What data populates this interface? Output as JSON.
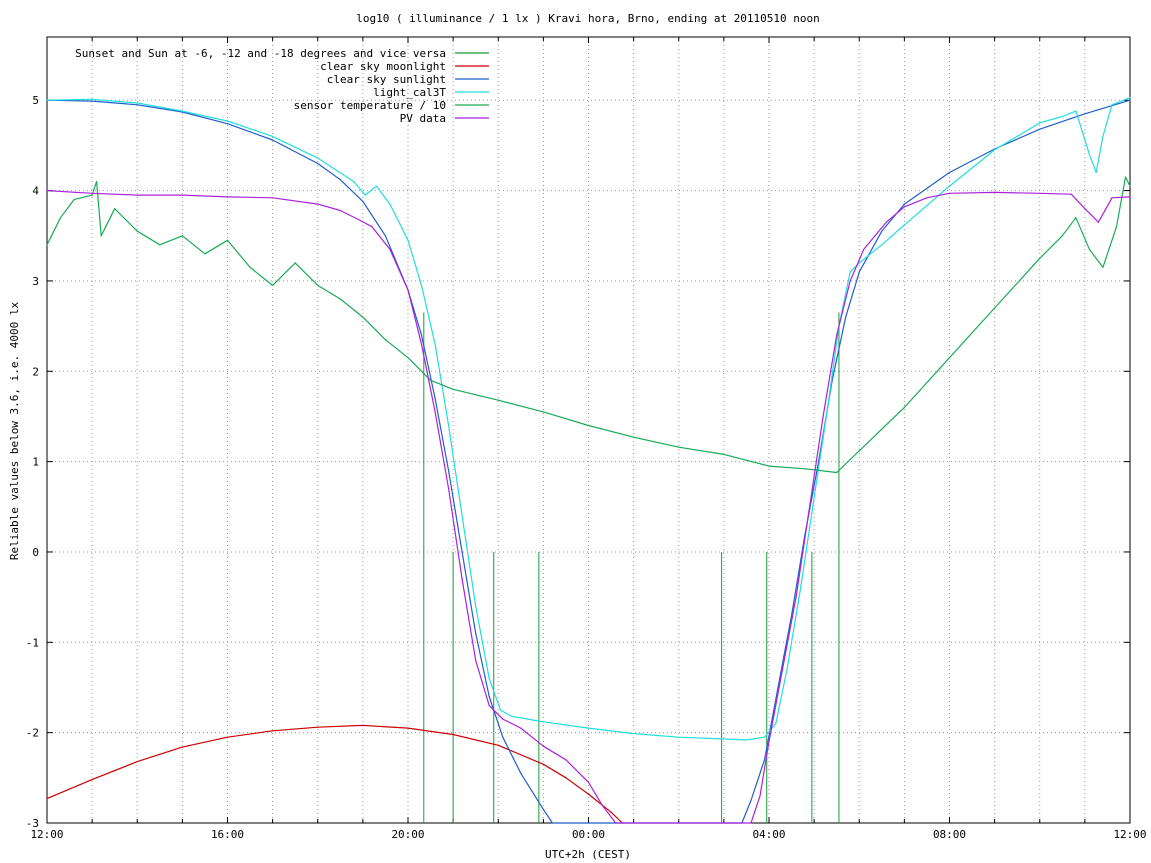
{
  "chart_data": {
    "type": "line",
    "title": "log10 ( illuminance / 1 lx ) Kravi hora, Brno, ending at 20110510 noon",
    "xlabel": "UTC+2h (CEST)",
    "ylabel": "Reliable values below 3.6, i.e. 4000 lx",
    "x_unit": "hours since 12:00 (CEST)",
    "xlim": [
      0,
      24
    ],
    "ylim": [
      -3,
      5.7
    ],
    "x_ticks": [
      {
        "x": 0,
        "label": "12:00"
      },
      {
        "x": 4,
        "label": "16:00"
      },
      {
        "x": 8,
        "label": "20:00"
      },
      {
        "x": 12,
        "label": "00:00"
      },
      {
        "x": 16,
        "label": "04:00"
      },
      {
        "x": 20,
        "label": "08:00"
      },
      {
        "x": 24,
        "label": "12:00"
      }
    ],
    "y_ticks": [
      {
        "y": 5,
        "label": "5"
      },
      {
        "y": 4,
        "label": "4"
      },
      {
        "y": 3,
        "label": "3"
      },
      {
        "y": 2,
        "label": "2"
      },
      {
        "y": 1,
        "label": "1"
      },
      {
        "y": 0,
        "label": "0"
      },
      {
        "y": -1,
        "label": "-1"
      },
      {
        "y": -2,
        "label": "-2"
      },
      {
        "y": -3,
        "label": "-3"
      }
    ],
    "grid": true,
    "legend_position": "top-left",
    "series": [
      {
        "name": "Sunset and Sun at -6, -12 and -18 degrees and vice versa",
        "color": "#1a9a3a",
        "style": "impulses",
        "points": [
          [
            8.35,
            2.65
          ],
          [
            9.0,
            0.0
          ],
          [
            9.9,
            0.0
          ],
          [
            10.9,
            0.0
          ],
          [
            14.95,
            0.0
          ],
          [
            15.95,
            0.0
          ],
          [
            16.95,
            0.0
          ],
          [
            17.55,
            2.65
          ]
        ]
      },
      {
        "name": "clear sky moonlight",
        "color": "#cc0000",
        "style": "line",
        "points": [
          [
            0,
            -2.73
          ],
          [
            1,
            -2.52
          ],
          [
            2,
            -2.32
          ],
          [
            3,
            -2.16
          ],
          [
            4,
            -2.05
          ],
          [
            5,
            -1.98
          ],
          [
            6,
            -1.94
          ],
          [
            7,
            -1.92
          ],
          [
            8,
            -1.95
          ],
          [
            9,
            -2.02
          ],
          [
            10,
            -2.14
          ],
          [
            11,
            -2.35
          ],
          [
            11.5,
            -2.5
          ],
          [
            12,
            -2.68
          ],
          [
            12.5,
            -2.88
          ],
          [
            12.75,
            -3.0
          ]
        ]
      },
      {
        "name": "clear sky sunlight",
        "color": "#1f5fcc",
        "style": "line",
        "points": [
          [
            0,
            5.0
          ],
          [
            1,
            4.99
          ],
          [
            2,
            4.95
          ],
          [
            3,
            4.87
          ],
          [
            4,
            4.74
          ],
          [
            5,
            4.56
          ],
          [
            6,
            4.3
          ],
          [
            6.5,
            4.12
          ],
          [
            7,
            3.88
          ],
          [
            7.5,
            3.5
          ],
          [
            8,
            2.9
          ],
          [
            8.3,
            2.4
          ],
          [
            8.6,
            1.7
          ],
          [
            8.9,
            0.9
          ],
          [
            9.2,
            0.0
          ],
          [
            9.5,
            -0.9
          ],
          [
            9.8,
            -1.6
          ],
          [
            10.1,
            -2.05
          ],
          [
            10.5,
            -2.45
          ],
          [
            11,
            -2.85
          ],
          [
            11.2,
            -3.0
          ],
          [
            15.4,
            -3.0
          ],
          [
            15.6,
            -2.75
          ],
          [
            15.9,
            -2.3
          ],
          [
            16.2,
            -1.5
          ],
          [
            16.5,
            -0.7
          ],
          [
            16.8,
            0.2
          ],
          [
            17.1,
            1.0
          ],
          [
            17.4,
            1.9
          ],
          [
            17.7,
            2.6
          ],
          [
            18.0,
            3.1
          ],
          [
            18.5,
            3.55
          ],
          [
            19,
            3.85
          ],
          [
            20,
            4.2
          ],
          [
            21,
            4.46
          ],
          [
            22,
            4.68
          ],
          [
            23,
            4.85
          ],
          [
            24,
            5.0
          ]
        ]
      },
      {
        "name": "light_cal3T",
        "color": "#22dddd",
        "style": "line",
        "points": [
          [
            0,
            5.0
          ],
          [
            1,
            5.01
          ],
          [
            2,
            4.97
          ],
          [
            3,
            4.88
          ],
          [
            4,
            4.77
          ],
          [
            5,
            4.6
          ],
          [
            6,
            4.36
          ],
          [
            6.8,
            4.1
          ],
          [
            7.05,
            3.95
          ],
          [
            7.3,
            4.05
          ],
          [
            7.6,
            3.85
          ],
          [
            8,
            3.45
          ],
          [
            8.3,
            2.95
          ],
          [
            8.6,
            2.3
          ],
          [
            8.9,
            1.4
          ],
          [
            9.2,
            0.4
          ],
          [
            9.5,
            -0.6
          ],
          [
            9.8,
            -1.4
          ],
          [
            10.05,
            -1.75
          ],
          [
            10.3,
            -1.82
          ],
          [
            11,
            -1.88
          ],
          [
            12,
            -1.95
          ],
          [
            13,
            -2.01
          ],
          [
            14,
            -2.05
          ],
          [
            15,
            -2.07
          ],
          [
            15.5,
            -2.08
          ],
          [
            15.9,
            -2.05
          ],
          [
            16.15,
            -1.9
          ],
          [
            16.4,
            -1.3
          ],
          [
            16.7,
            -0.4
          ],
          [
            17.0,
            0.6
          ],
          [
            17.3,
            1.6
          ],
          [
            17.55,
            2.5
          ],
          [
            17.8,
            3.1
          ],
          [
            18.0,
            3.2
          ],
          [
            18.5,
            3.4
          ],
          [
            19,
            3.62
          ],
          [
            20,
            4.05
          ],
          [
            21,
            4.45
          ],
          [
            22,
            4.75
          ],
          [
            22.5,
            4.82
          ],
          [
            22.8,
            4.88
          ],
          [
            23.1,
            4.4
          ],
          [
            23.25,
            4.2
          ],
          [
            23.4,
            4.6
          ],
          [
            23.6,
            4.95
          ],
          [
            24,
            5.03
          ]
        ]
      },
      {
        "name": "sensor temperature / 10",
        "color": "#1aaa55",
        "style": "line",
        "points": [
          [
            0,
            3.4
          ],
          [
            0.3,
            3.7
          ],
          [
            0.6,
            3.9
          ],
          [
            1.0,
            3.95
          ],
          [
            1.1,
            4.1
          ],
          [
            1.2,
            3.5
          ],
          [
            1.5,
            3.8
          ],
          [
            2,
            3.55
          ],
          [
            2.5,
            3.4
          ],
          [
            3,
            3.5
          ],
          [
            3.5,
            3.3
          ],
          [
            4,
            3.45
          ],
          [
            4.5,
            3.15
          ],
          [
            5,
            2.95
          ],
          [
            5.5,
            3.2
          ],
          [
            6,
            2.95
          ],
          [
            6.5,
            2.8
          ],
          [
            7,
            2.6
          ],
          [
            7.5,
            2.35
          ],
          [
            8,
            2.15
          ],
          [
            8.5,
            1.9
          ],
          [
            9,
            1.8
          ],
          [
            10,
            1.68
          ],
          [
            11,
            1.55
          ],
          [
            12,
            1.4
          ],
          [
            13,
            1.27
          ],
          [
            14,
            1.16
          ],
          [
            15,
            1.08
          ],
          [
            16,
            0.95
          ],
          [
            16.8,
            0.92
          ],
          [
            17.5,
            0.88
          ],
          [
            19,
            1.6
          ],
          [
            20,
            2.15
          ],
          [
            21,
            2.7
          ],
          [
            22,
            3.25
          ],
          [
            22.5,
            3.5
          ],
          [
            22.8,
            3.7
          ],
          [
            23.1,
            3.35
          ],
          [
            23.4,
            3.15
          ],
          [
            23.7,
            3.6
          ],
          [
            23.9,
            4.15
          ],
          [
            24,
            4.05
          ]
        ]
      },
      {
        "name": "PV data",
        "color": "#aa22dd",
        "style": "line",
        "points": [
          [
            0,
            4.0
          ],
          [
            1,
            3.97
          ],
          [
            2,
            3.95
          ],
          [
            3,
            3.95
          ],
          [
            4,
            3.93
          ],
          [
            5,
            3.92
          ],
          [
            6,
            3.85
          ],
          [
            6.5,
            3.78
          ],
          [
            6.9,
            3.68
          ],
          [
            7.2,
            3.6
          ],
          [
            7.6,
            3.35
          ],
          [
            8,
            2.9
          ],
          [
            8.3,
            2.3
          ],
          [
            8.6,
            1.55
          ],
          [
            8.9,
            0.7
          ],
          [
            9.2,
            -0.3
          ],
          [
            9.5,
            -1.2
          ],
          [
            9.8,
            -1.7
          ],
          [
            10.1,
            -1.85
          ],
          [
            10.5,
            -1.95
          ],
          [
            11,
            -2.15
          ],
          [
            11.5,
            -2.3
          ],
          [
            12,
            -2.55
          ],
          [
            12.3,
            -2.8
          ],
          [
            12.6,
            -3.0
          ],
          [
            15.6,
            -3.0
          ],
          [
            15.8,
            -2.7
          ],
          [
            16.0,
            -2.1
          ],
          [
            16.3,
            -1.3
          ],
          [
            16.6,
            -0.5
          ],
          [
            16.9,
            0.5
          ],
          [
            17.2,
            1.5
          ],
          [
            17.5,
            2.4
          ],
          [
            17.8,
            3.0
          ],
          [
            18.1,
            3.35
          ],
          [
            18.6,
            3.65
          ],
          [
            19,
            3.82
          ],
          [
            19.5,
            3.92
          ],
          [
            20,
            3.97
          ],
          [
            21,
            3.98
          ],
          [
            22,
            3.97
          ],
          [
            22.7,
            3.96
          ],
          [
            23,
            3.8
          ],
          [
            23.3,
            3.65
          ],
          [
            23.6,
            3.92
          ],
          [
            24,
            3.93
          ]
        ]
      }
    ]
  }
}
